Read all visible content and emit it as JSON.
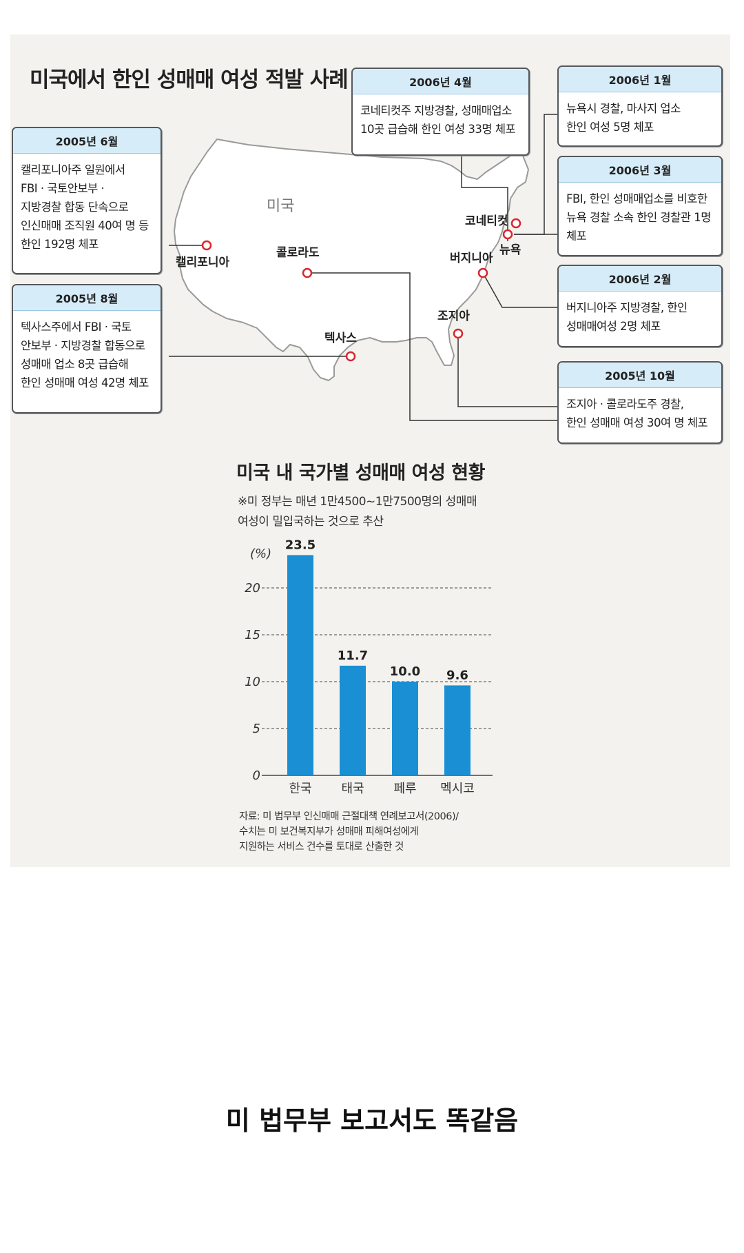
{
  "main_title": "미국에서 한인 성매매 여성 적발 사례",
  "map": {
    "country_label": "미국",
    "places": {
      "california": "캘리포니아",
      "colorado": "콜로라도",
      "texas": "텍사스",
      "georgia": "조지아",
      "virginia": "버지니아",
      "connecticut": "코네티컷",
      "newyork": "뉴욕"
    }
  },
  "events": [
    {
      "date": "2005년 6월",
      "text": "캘리포니아주 일원에서\nFBI · 국토안보부 ·\n지방경찰 합동 단속으로\n인신매매 조직원 40여 명 등\n한인 192명 체포"
    },
    {
      "date": "2005년 8월",
      "text": "텍사스주에서 FBI · 국토\n안보부 · 지방경찰 합동으로\n성매매 업소 8곳 급습해\n한인 성매매 여성 42명 체포"
    },
    {
      "date": "2006년 4월",
      "text": "코네티컷주 지방경찰, 성매매업소\n10곳 급습해 한인 여성 33명 체포"
    },
    {
      "date": "2006년 1월",
      "text": "뉴욕시 경찰, 마사지 업소\n한인 여성 5명 체포"
    },
    {
      "date": "2006년 3월",
      "text": "FBI, 한인 성매매업소를 비호한\n뉴욕 경찰 소속 한인 경찰관 1명\n체포"
    },
    {
      "date": "2006년 2월",
      "text": "버지니아주 지방경찰, 한인\n성매매여성 2명 체포"
    },
    {
      "date": "2005년 10월",
      "text": "조지아 · 콜로라도주 경찰,\n한인 성매매 여성 30여 명 체포"
    }
  ],
  "chart_title": "미국 내 국가별 성매매 여성 현황",
  "chart_note": "※미 정부는 매년 1만4500~1만7500명의 성매매\n여성이 밀입국하는 것으로 추산",
  "source": "자료: 미 법무부 인신매매 근절대책 연례보고서(2006)/\n수치는 미 보건복지부가 성매매 피해여성에게\n지원하는 서비스 건수를 토대로 산출한 것",
  "caption": "미 법무부 보고서도 똑같음",
  "colors": {
    "bar": "#1a8fd4",
    "marker": "#d9262f"
  },
  "chart_data": {
    "type": "bar",
    "title": "미국 내 국가별 성매매 여성 현황",
    "ylabel": "(%)",
    "categories": [
      "한국",
      "태국",
      "페루",
      "멕시코"
    ],
    "values": [
      23.5,
      11.7,
      10.0,
      9.6
    ],
    "value_labels": [
      "23.5",
      "11.7",
      "10.0",
      "9.6"
    ],
    "yticks": [
      0,
      5,
      10,
      15,
      20
    ],
    "ylim": [
      0,
      25
    ],
    "grid": true
  }
}
